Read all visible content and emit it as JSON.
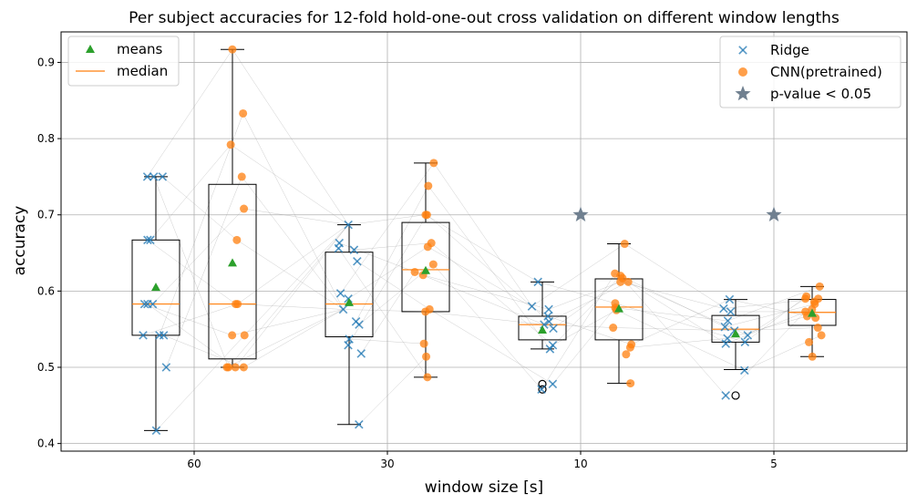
{
  "chart_data": {
    "type": "box+scatter",
    "title": "Per subject accuracies for 12-fold hold-one-out cross validation on different window lengths",
    "xlabel": "window size [s]",
    "ylabel": "accuracy",
    "ylim": [
      0.39,
      0.94
    ],
    "yticks": [
      "0.4",
      "0.5",
      "0.6",
      "0.7",
      "0.8",
      "0.9"
    ],
    "categories": [
      "60",
      "30",
      "10",
      "5"
    ],
    "grid": true,
    "legend_left": {
      "placement": "top-left",
      "items": [
        {
          "label": "means",
          "marker": "triangle",
          "color": "#2ca02c"
        },
        {
          "label": "median",
          "marker": "line",
          "color": "#ff7f0e"
        }
      ]
    },
    "legend_right": {
      "placement": "top-right",
      "items": [
        {
          "label": "Ridge",
          "marker": "x",
          "color": "#1f77b4"
        },
        {
          "label": "CNN(pretrained)",
          "marker": "circle",
          "color": "#ff7f0e"
        },
        {
          "label": "p-value < 0.05",
          "marker": "star",
          "color": "#708090"
        }
      ]
    },
    "colors": {
      "ridge": "#1f77b4",
      "cnn": "#ff7f0e",
      "mean": "#2ca02c",
      "star": "#708090",
      "grid": "#b0b0b0"
    },
    "series": [
      {
        "name": "Ridge",
        "boxes": [
          {
            "category": "60",
            "q1": 0.542,
            "median": 0.583,
            "q3": 0.667,
            "whisker_low": 0.417,
            "whisker_high": 0.75,
            "mean": 0.605,
            "outliers": []
          },
          {
            "category": "30",
            "q1": 0.54,
            "median": 0.583,
            "q3": 0.651,
            "whisker_low": 0.425,
            "whisker_high": 0.687,
            "mean": 0.585,
            "outliers": []
          },
          {
            "category": "10",
            "q1": 0.536,
            "median": 0.556,
            "q3": 0.567,
            "whisker_low": 0.524,
            "whisker_high": 0.612,
            "mean": 0.549,
            "outliers": [
              0.478,
              0.471
            ]
          },
          {
            "category": "5",
            "q1": 0.533,
            "median": 0.55,
            "q3": 0.568,
            "whisker_low": 0.497,
            "whisker_high": 0.589,
            "mean": 0.544,
            "outliers": [
              0.463
            ]
          }
        ],
        "points": [
          [
            0.75,
            0.75,
            0.75,
            0.667,
            0.667,
            0.583,
            0.583,
            0.583,
            0.542,
            0.542,
            0.542,
            0.5,
            0.417
          ],
          [
            0.687,
            0.663,
            0.656,
            0.654,
            0.639,
            0.597,
            0.59,
            0.576,
            0.56,
            0.556,
            0.537,
            0.529,
            0.518,
            0.425
          ],
          [
            0.612,
            0.58,
            0.576,
            0.567,
            0.56,
            0.556,
            0.551,
            0.529,
            0.524,
            0.478,
            0.471
          ],
          [
            0.589,
            0.577,
            0.573,
            0.561,
            0.553,
            0.548,
            0.542,
            0.538,
            0.533,
            0.531,
            0.496,
            0.463
          ]
        ]
      },
      {
        "name": "CNN(pretrained)",
        "boxes": [
          {
            "category": "60",
            "q1": 0.511,
            "median": 0.583,
            "q3": 0.74,
            "whisker_low": 0.5,
            "whisker_high": 0.917,
            "mean": 0.637,
            "outliers": []
          },
          {
            "category": "30",
            "q1": 0.573,
            "median": 0.628,
            "q3": 0.69,
            "whisker_low": 0.487,
            "whisker_high": 0.768,
            "mean": 0.627,
            "outliers": []
          },
          {
            "category": "10",
            "q1": 0.536,
            "median": 0.579,
            "q3": 0.616,
            "whisker_low": 0.479,
            "whisker_high": 0.662,
            "mean": 0.577,
            "outliers": []
          },
          {
            "category": "5",
            "q1": 0.555,
            "median": 0.572,
            "q3": 0.589,
            "whisker_low": 0.514,
            "whisker_high": 0.606,
            "mean": 0.571,
            "outliers": []
          }
        ],
        "points": [
          [
            0.917,
            0.833,
            0.792,
            0.75,
            0.708,
            0.667,
            0.583,
            0.583,
            0.542,
            0.542,
            0.5,
            0.5,
            0.5,
            0.5
          ],
          [
            0.768,
            0.738,
            0.7,
            0.7,
            0.663,
            0.658,
            0.635,
            0.625,
            0.621,
            0.576,
            0.573,
            0.531,
            0.514,
            0.487
          ],
          [
            0.662,
            0.623,
            0.62,
            0.617,
            0.612,
            0.612,
            0.584,
            0.578,
            0.575,
            0.552,
            0.53,
            0.526,
            0.517,
            0.479
          ],
          [
            0.606,
            0.593,
            0.59,
            0.59,
            0.586,
            0.583,
            0.576,
            0.573,
            0.567,
            0.565,
            0.552,
            0.542,
            0.533,
            0.514
          ]
        ]
      }
    ],
    "significance_stars": [
      {
        "category": "10",
        "y": 0.7
      },
      {
        "category": "5",
        "y": 0.7
      }
    ]
  }
}
